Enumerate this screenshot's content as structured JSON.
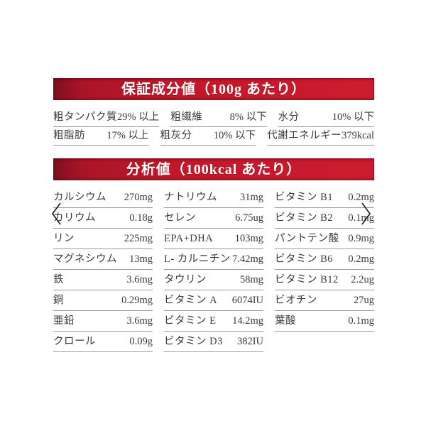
{
  "colors": {
    "accent_dark": "#7f101e",
    "accent": "#c2182a",
    "accent_bright": "#cd1c2f",
    "bar_text": "#ffffff",
    "text": "#3a3a3a",
    "rule": "#9a9a9a",
    "chevron": "#1f1f1f"
  },
  "section1": {
    "title": "保証成分値（100g あたり）",
    "rows": [
      [
        {
          "label": "粗タンパク質",
          "value": "29% 以上"
        },
        {
          "label": "粗繊維",
          "value": "8% 以下"
        },
        {
          "label": "水分",
          "value": "10% 以下"
        }
      ],
      [
        {
          "label": "粗脂肪",
          "value": "17% 以上"
        },
        {
          "label": "粗灰分",
          "value": "10% 以下"
        },
        {
          "label": "代謝エネルギー",
          "value": "379kcal"
        }
      ]
    ]
  },
  "section2": {
    "title": "分析値（100kcal あたり）",
    "columns": [
      [
        {
          "label": "カルシウム",
          "value": "270mg"
        },
        {
          "label": "カリウム",
          "value": "0.18g"
        },
        {
          "label": "リン",
          "value": "225mg"
        },
        {
          "label": "マグネシウム",
          "value": "13mg"
        },
        {
          "label": "鉄",
          "value": "3.6mg"
        },
        {
          "label": "銅",
          "value": "0.29mg"
        },
        {
          "label": "亜鉛",
          "value": "3.6mg"
        },
        {
          "label": "クロール",
          "value": "0.09g"
        }
      ],
      [
        {
          "label": "ナトリウム",
          "value": "31mg"
        },
        {
          "label": "セレン",
          "value": "6.75ug"
        },
        {
          "label": "EPA+DHA",
          "value": "103mg"
        },
        {
          "label": "L- カルニチン",
          "value": "7.42mg"
        },
        {
          "label": "タウリン",
          "value": "58mg"
        },
        {
          "label": "ビタミン A",
          "value": "6074IU"
        },
        {
          "label": "ビタミン E",
          "value": "14.2mg"
        },
        {
          "label": "ビタミン D3",
          "value": "382IU"
        }
      ],
      [
        {
          "label": "ビタミン B1",
          "value": "0.2mg"
        },
        {
          "label": "ビタミン B2",
          "value": "0.1mg"
        },
        {
          "label": "パントテン酸",
          "value": "0.9mg"
        },
        {
          "label": "ビタミン B6",
          "value": "0.2mg"
        },
        {
          "label": "ビタミン B12",
          "value": "2.2ug"
        },
        {
          "label": "ビオチン",
          "value": "27ug"
        },
        {
          "label": "葉酸",
          "value": "0.1mg"
        }
      ]
    ]
  },
  "carousel": {
    "prev_icon": "chevron-left",
    "next_icon": "chevron-right"
  }
}
